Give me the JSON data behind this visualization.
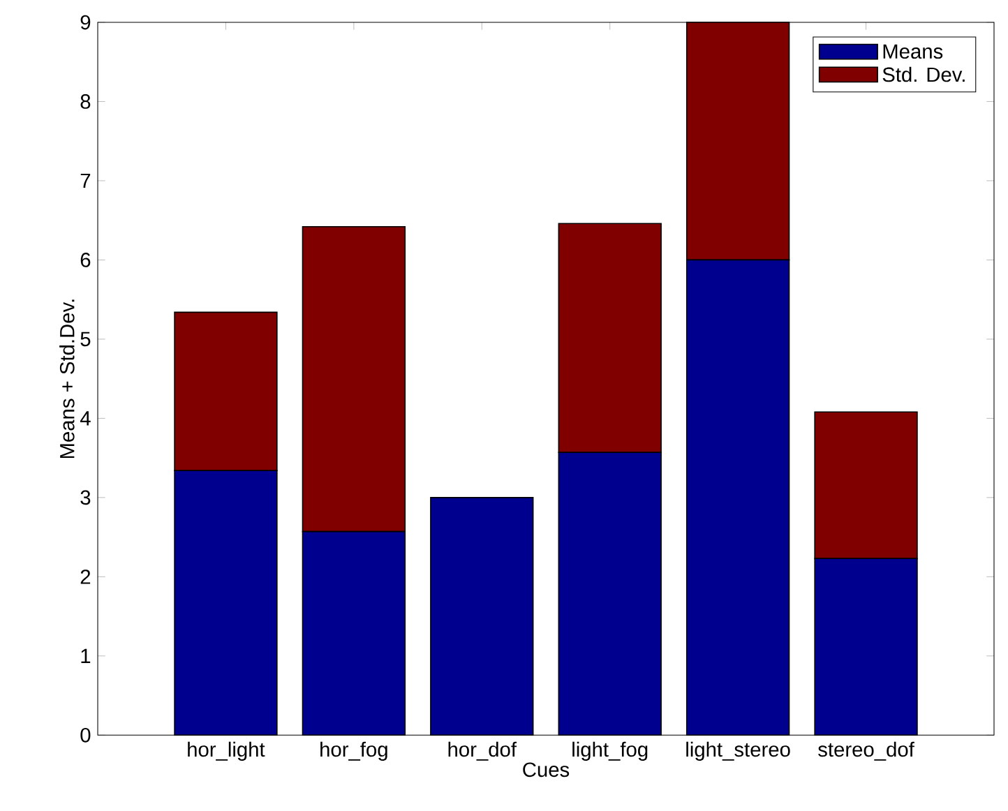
{
  "chart_data": {
    "type": "bar",
    "stacked": true,
    "xlabel": "Cues",
    "ylabel": "Means + Std.Dev.",
    "categories": [
      "hor_light",
      "hor_fog",
      "hor_dof",
      "light_fog",
      "light_stereo",
      "stereo_dof"
    ],
    "series": [
      {
        "name": "Means",
        "color": "#00008f",
        "values": [
          3.34,
          2.57,
          3.0,
          3.57,
          6.0,
          2.23
        ]
      },
      {
        "name": "Std. Dev.",
        "color": "#800000",
        "values": [
          2.0,
          3.85,
          0,
          2.89,
          3.0,
          1.85
        ]
      }
    ],
    "ylim": [
      0,
      9
    ],
    "yticks": [
      0,
      1,
      2,
      3,
      4,
      5,
      6,
      7,
      8,
      9
    ],
    "grid": false,
    "legend": "top right"
  }
}
